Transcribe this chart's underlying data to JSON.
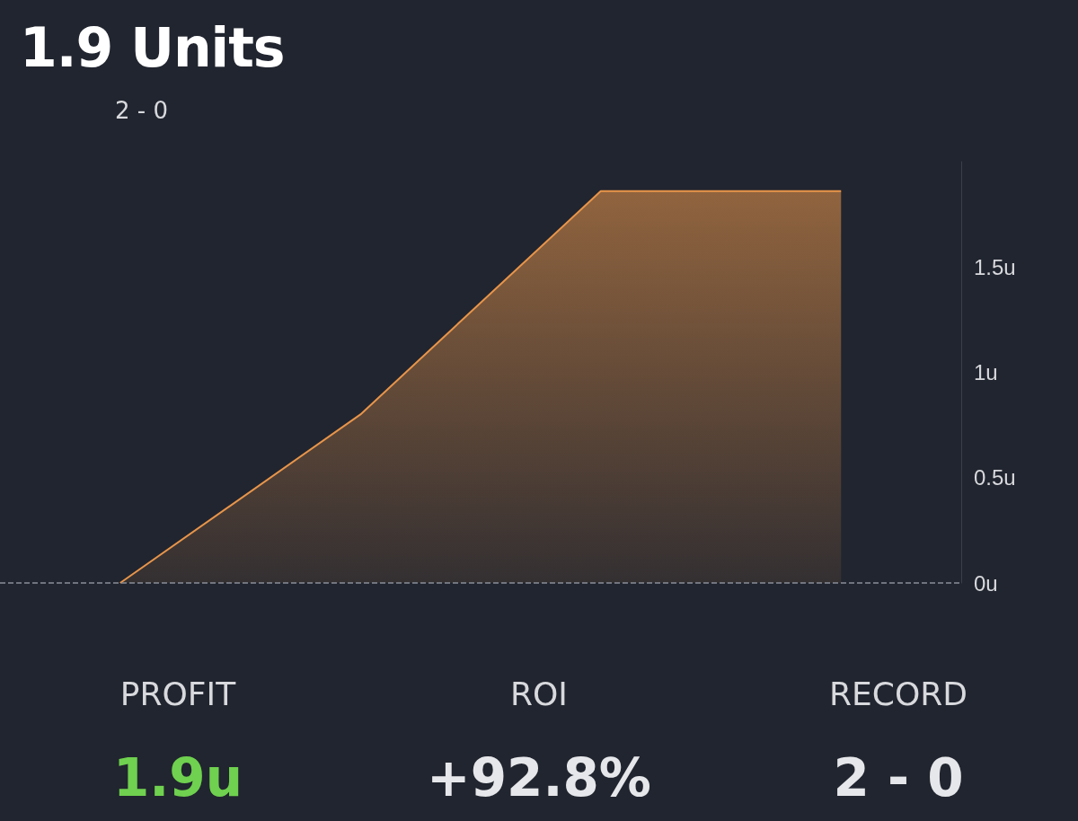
{
  "chart_data": {
    "type": "area",
    "title": "1.9 Units",
    "subtitle": "2 - 0",
    "categories": [
      null,
      null,
      null,
      null
    ],
    "series": [
      {
        "color": "#e8954a",
        "values": [
          0,
          0.8,
          1.86,
          1.86
        ]
      }
    ],
    "yticks": [
      {
        "value": 0,
        "label": "0u"
      },
      {
        "value": 0.5,
        "label": "0.5u"
      },
      {
        "value": 1,
        "label": "1u"
      },
      {
        "value": 1.5,
        "label": "1.5u"
      }
    ],
    "ylim": [
      0,
      2
    ],
    "tick_labels": "y",
    "grid": false,
    "marker": "none",
    "ref_lines": [
      {
        "axis": "y",
        "value": 0,
        "line_style": "dashed",
        "color": "#8a8f99"
      }
    ],
    "annotations": [
      "PROFIT",
      "1.9u",
      "ROI",
      "+92.8%",
      "RECORD",
      "2 - 0"
    ]
  }
}
